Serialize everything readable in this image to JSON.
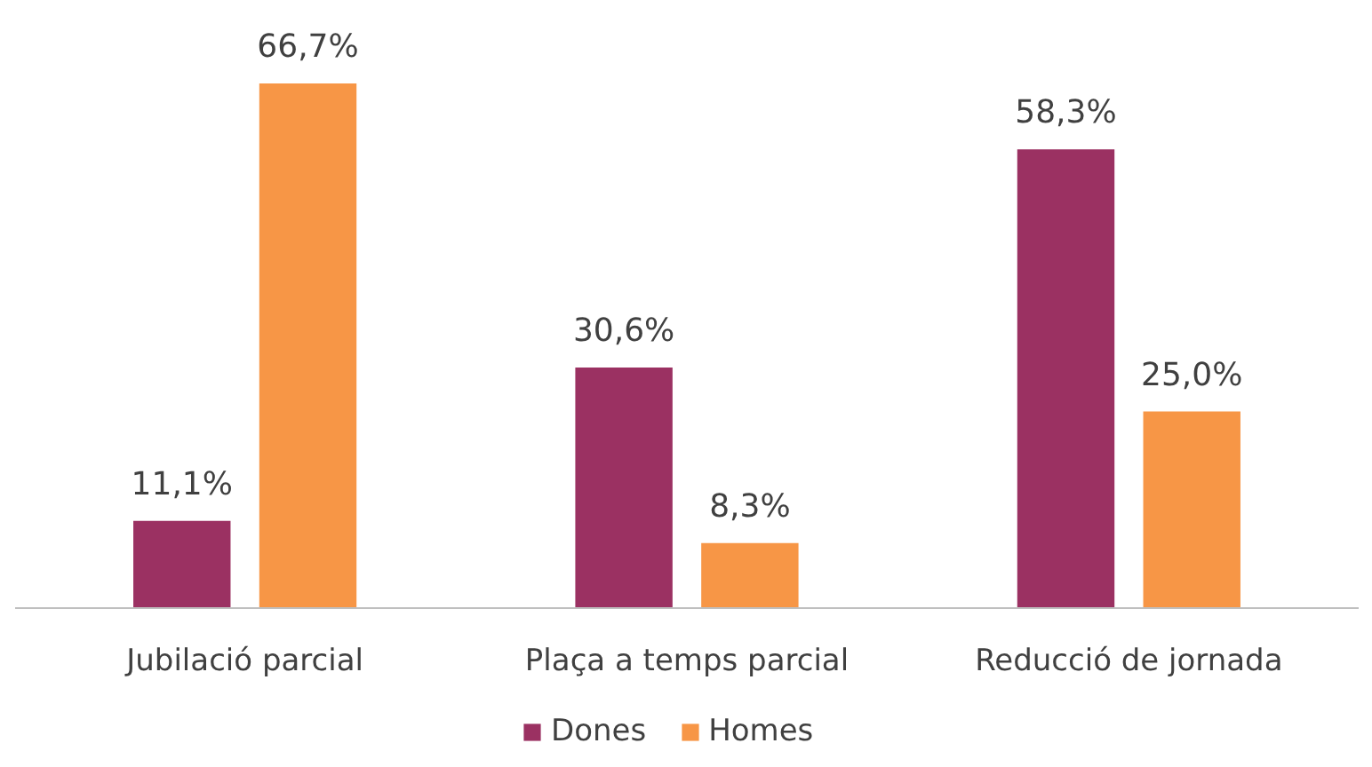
{
  "chart_data": {
    "type": "bar",
    "categories": [
      "Jubilació parcial",
      "Plaça a temps parcial",
      "Reducció de jornada"
    ],
    "series": [
      {
        "name": "Dones",
        "color": "#9b3162",
        "values": [
          11.1,
          30.6,
          58.3
        ],
        "value_labels": [
          "11,1%",
          "30,6%",
          "58,3%"
        ]
      },
      {
        "name": "Homes",
        "color": "#f79646",
        "values": [
          66.7,
          8.3,
          25.0
        ],
        "value_labels": [
          "66,7%",
          "8,3%",
          "25,0%"
        ]
      }
    ],
    "legend": "bottom"
  }
}
